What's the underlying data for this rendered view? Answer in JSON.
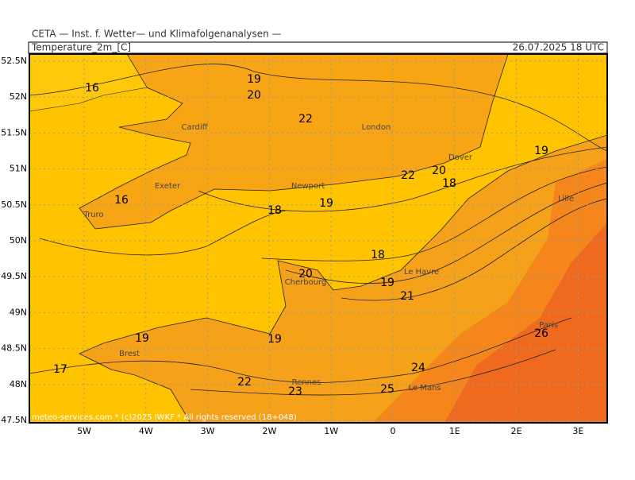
{
  "header": {
    "institute": "CETA — Inst. f. Wetter— und Klimafolgenanalysen —",
    "title": "Temperature_2m_[C]",
    "date": "26.07.2025 18 UTC"
  },
  "map": {
    "lat_labels": [
      "52.5N",
      "52N",
      "51.5N",
      "51N",
      "50.5N",
      "50N",
      "49.5N",
      "49N",
      "48.5N",
      "48N",
      "47.5N"
    ],
    "lon_labels": [
      "5W",
      "4W",
      "3W",
      "2W",
      "1W",
      "0",
      "1E",
      "2E",
      "3E"
    ],
    "contour_labels": [
      16,
      19,
      20,
      22,
      19,
      20,
      22,
      18,
      16,
      19,
      18,
      18,
      20,
      19,
      21,
      19,
      19,
      26,
      17,
      24,
      22,
      23,
      25
    ],
    "cities": [
      "Cardiff",
      "London",
      "Dover",
      "Exeter",
      "Newport",
      "Lille",
      "Truro",
      "Le Havre",
      "Cherbourg",
      "Paris",
      "Brest",
      "Rennes",
      "Le Mans"
    ],
    "footer": "meteo-services.com * (c)2025 IWKF * All rights reserved (18+048)"
  }
}
